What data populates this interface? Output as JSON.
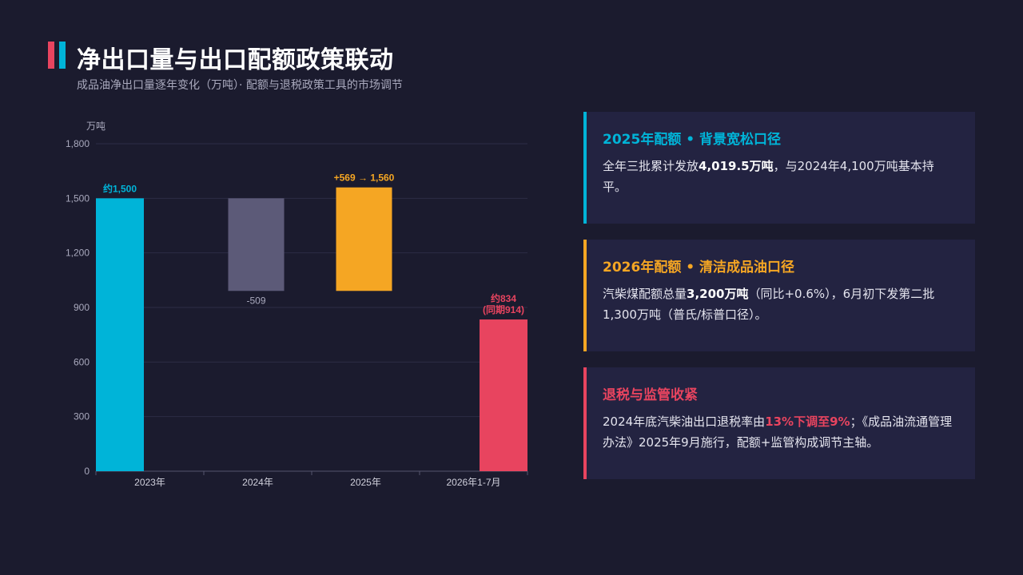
{
  "header": {
    "title": "净出口量与出口配额政策联动",
    "subtitle": "成品油净出口量逐年变化（万吨）· 配额与退税政策工具的市场调节"
  },
  "colors": {
    "cyan": "#00b4d8",
    "gray": "#5c5a78",
    "orange": "#f5a623",
    "red": "#e8445f",
    "background": "#1b1b2e",
    "card": "#232341"
  },
  "chart_data": {
    "type": "bar",
    "subtype": "waterfall",
    "ylabel": "万吨",
    "ylim": [
      0,
      1800
    ],
    "yticks": [
      0,
      300,
      600,
      900,
      1200,
      1500,
      1800
    ],
    "ytick_labels": [
      "0",
      "300",
      "600",
      "900",
      "1,200",
      "1,500",
      "1,800"
    ],
    "grid": true,
    "categories": [
      "2023年",
      "2024年",
      "2025年",
      "2026年1-7月"
    ],
    "bars": [
      {
        "category": "2023年",
        "base": 0,
        "top": 1500,
        "color": "#00b4d8",
        "label": "约1,500",
        "label_color": "#00b4d8",
        "label_position": "top"
      },
      {
        "category": "2024年",
        "base": 991,
        "top": 1500,
        "color": "#5c5a78",
        "label": "-509",
        "label_color": "#a9a9bd",
        "label_position": "bottom"
      },
      {
        "category": "2025年",
        "base": 991,
        "top": 1560,
        "color": "#f5a623",
        "label": "+569 → 1,560",
        "label_color": "#f5a623",
        "label_position": "top"
      },
      {
        "category": "2026年1-7月",
        "base": 0,
        "top": 834,
        "color": "#e8445f",
        "label": "约834",
        "label2": "(同期914)",
        "label_color": "#e8445f",
        "label_position": "top"
      }
    ]
  },
  "cards": [
    {
      "title": "2025年配额 • 背景宽松口径",
      "color": "#00b4d8",
      "body": [
        {
          "t": "全年三批累计发放"
        },
        {
          "t": "4,019.5万吨",
          "bold": true
        },
        {
          "t": "，与2024年4,100万吨基本持平。"
        }
      ]
    },
    {
      "title": "2026年配额 • 清洁成品油口径",
      "color": "#f5a623",
      "body": [
        {
          "t": "汽柴煤配额总量"
        },
        {
          "t": "3,200万吨",
          "bold": true
        },
        {
          "t": "（同比+0.6%），6月初下发第二批1,300万吨（普氏/标普口径）。"
        }
      ]
    },
    {
      "title": "退税与监管收紧",
      "color": "#e8445f",
      "body": [
        {
          "t": "2024年底汽柴油出口退税率由"
        },
        {
          "t": "13%下调至9%",
          "bold": true,
          "color": "#e8445f"
        },
        {
          "t": "；《成品油流通管理办法》2025年9月施行，配额+监管构成调节主轴。"
        }
      ]
    }
  ]
}
